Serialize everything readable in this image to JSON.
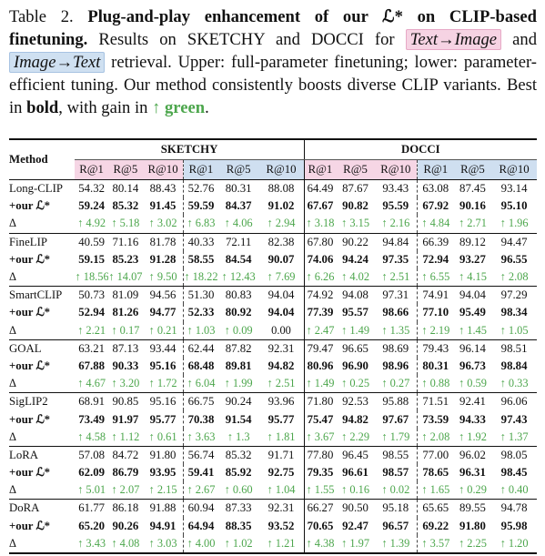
{
  "caption": {
    "label": "Table 2. ",
    "bold_title": "Plug-and-play enhancement of our ℒ* on CLIP-based finetuning.",
    "t1": " Results on SKETCHY and DOCCI for ",
    "pill_t2i": "Text→Image",
    "t2": " and ",
    "pill_i2t": "Image→Text",
    "t3": " retrieval. Upper: full-parameter finetuning; lower: parameter-efficient tuning. Our method consistently boosts diverse CLIP variants. Best in ",
    "bold_word": "bold",
    "t4": ", with gain in ",
    "gain_word": "↑ green",
    "t5": "."
  },
  "colors": {
    "t2i": "#f6d6e5",
    "i2t": "#cfdff0",
    "gain": "#4ca64c"
  },
  "table": {
    "method_header": "Method",
    "groups": [
      "SKETCHY",
      "DOCCI"
    ],
    "metrics": [
      "R@1",
      "R@5",
      "R@10",
      "R@1",
      "R@5",
      "R@10",
      "R@1",
      "R@5",
      "R@10",
      "R@1",
      "R@5",
      "R@10"
    ],
    "blocks": [
      {
        "rows": [
          {
            "type": "base",
            "label": "Long-CLIP",
            "vals": [
              "54.32",
              "80.14",
              "88.43",
              "52.76",
              "80.31",
              "88.08",
              "64.49",
              "87.67",
              "93.43",
              "63.08",
              "87.45",
              "93.14"
            ]
          },
          {
            "type": "ours",
            "label": "+our ℒ*",
            "vals": [
              "59.24",
              "85.32",
              "91.45",
              "59.59",
              "84.37",
              "91.02",
              "67.67",
              "90.82",
              "95.59",
              "67.92",
              "90.16",
              "95.10"
            ]
          },
          {
            "type": "delta",
            "label": "Δ",
            "vals": [
              "↑ 4.92",
              "↑ 5.18",
              "↑ 3.02",
              "↑ 6.83",
              "↑ 4.06",
              "↑ 2.94",
              "↑ 3.18",
              "↑ 3.15",
              "↑ 2.16",
              "↑ 4.84",
              "↑ 2.71",
              "↑ 1.96"
            ]
          }
        ]
      },
      {
        "rows": [
          {
            "type": "base",
            "label": "FineLIP",
            "vals": [
              "40.59",
              "71.16",
              "81.78",
              "40.33",
              "72.11",
              "82.38",
              "67.80",
              "90.22",
              "94.84",
              "66.39",
              "89.12",
              "94.47"
            ]
          },
          {
            "type": "ours",
            "label": "+our ℒ*",
            "vals": [
              "59.15",
              "85.23",
              "91.28",
              "58.55",
              "84.54",
              "90.07",
              "74.06",
              "94.24",
              "97.35",
              "72.94",
              "93.27",
              "96.55"
            ]
          },
          {
            "type": "delta",
            "label": "Δ",
            "vals": [
              "↑ 18.56",
              "↑ 14.07",
              "↑ 9.50",
              "↑ 18.22",
              "↑ 12.43",
              "↑ 7.69",
              "↑ 6.26",
              "↑ 4.02",
              "↑ 2.51",
              "↑ 6.55",
              "↑ 4.15",
              "↑ 2.08"
            ]
          }
        ]
      },
      {
        "rows": [
          {
            "type": "base",
            "label": "SmartCLIP",
            "vals": [
              "50.73",
              "81.09",
              "94.56",
              "51.30",
              "80.83",
              "94.04",
              "74.92",
              "94.08",
              "97.31",
              "74.91",
              "94.04",
              "97.29"
            ]
          },
          {
            "type": "ours",
            "label": "+our ℒ*",
            "vals": [
              "52.94",
              "81.26",
              "94.77",
              "52.33",
              "80.92",
              "94.04",
              "77.39",
              "95.57",
              "98.66",
              "77.10",
              "95.49",
              "98.34"
            ]
          },
          {
            "type": "delta",
            "label": "Δ",
            "vals": [
              "↑ 2.21",
              "↑ 0.17",
              "↑ 0.21",
              "↑ 1.03",
              "↑ 0.09",
              "0.00",
              "↑ 2.47",
              "↑ 1.49",
              "↑ 1.35",
              "↑ 2.19",
              "↑ 1.45",
              "↑ 1.05"
            ]
          }
        ]
      },
      {
        "rows": [
          {
            "type": "base",
            "label": "GOAL",
            "vals": [
              "63.21",
              "87.13",
              "93.44",
              "62.44",
              "87.82",
              "92.31",
              "79.47",
              "96.65",
              "98.69",
              "79.43",
              "96.14",
              "98.51"
            ]
          },
          {
            "type": "ours",
            "label": "+our ℒ*",
            "vals": [
              "67.88",
              "90.33",
              "95.16",
              "68.48",
              "89.81",
              "94.82",
              "80.96",
              "96.90",
              "98.96",
              "80.31",
              "96.73",
              "98.84"
            ]
          },
          {
            "type": "delta",
            "label": "Δ",
            "vals": [
              "↑ 4.67",
              "↑ 3.20",
              "↑ 1.72",
              "↑ 6.04",
              "↑ 1.99",
              "↑ 2.51",
              "↑ 1.49",
              "↑ 0.25",
              "↑ 0.27",
              "↑ 0.88",
              "↑ 0.59",
              "↑ 0.33"
            ]
          }
        ]
      },
      {
        "rows": [
          {
            "type": "base",
            "label": "SigLIP2",
            "vals": [
              "68.91",
              "90.85",
              "95.16",
              "66.75",
              "90.24",
              "93.96",
              "71.80",
              "92.53",
              "95.88",
              "71.51",
              "92.41",
              "96.06"
            ]
          },
          {
            "type": "ours",
            "label": "+our ℒ*",
            "vals": [
              "73.49",
              "91.97",
              "95.77",
              "70.38",
              "91.54",
              "95.77",
              "75.47",
              "94.82",
              "97.67",
              "73.59",
              "94.33",
              "97.43"
            ]
          },
          {
            "type": "delta",
            "label": "Δ",
            "vals": [
              "↑ 4.58",
              "↑ 1.12",
              "↑ 0.61",
              "↑ 3.63",
              "↑ 1.3",
              "↑ 1.81",
              "↑ 3.67",
              "↑ 2.29",
              "↑ 1.79",
              "↑ 2.08",
              "↑ 1.92",
              "↑ 1.37"
            ]
          }
        ]
      },
      {
        "rows": [
          {
            "type": "base",
            "label": "LoRA",
            "vals": [
              "57.08",
              "84.72",
              "91.80",
              "56.74",
              "85.32",
              "91.71",
              "77.80",
              "96.45",
              "98.55",
              "77.00",
              "96.02",
              "98.05"
            ]
          },
          {
            "type": "ours",
            "label": "+our ℒ*",
            "vals": [
              "62.09",
              "86.79",
              "93.95",
              "59.41",
              "85.92",
              "92.75",
              "79.35",
              "96.61",
              "98.57",
              "78.65",
              "96.31",
              "98.45"
            ]
          },
          {
            "type": "delta",
            "label": "Δ",
            "vals": [
              "↑ 5.01",
              "↑ 2.07",
              "↑ 2.15",
              "↑ 2.67",
              "↑ 0.60",
              "↑ 1.04",
              "↑ 1.55",
              "↑ 0.16",
              "↑ 0.02",
              "↑ 1.65",
              "↑ 0.29",
              "↑ 0.40"
            ]
          }
        ]
      },
      {
        "rows": [
          {
            "type": "base",
            "label": "DoRA",
            "vals": [
              "61.77",
              "86.18",
              "91.88",
              "60.94",
              "87.33",
              "92.31",
              "66.27",
              "90.50",
              "95.18",
              "65.65",
              "89.55",
              "94.78"
            ]
          },
          {
            "type": "ours",
            "label": "+our ℒ*",
            "vals": [
              "65.20",
              "90.26",
              "94.91",
              "64.94",
              "88.35",
              "93.52",
              "70.65",
              "92.47",
              "96.57",
              "69.22",
              "91.80",
              "95.98"
            ]
          },
          {
            "type": "delta",
            "label": "Δ",
            "vals": [
              "↑ 3.43",
              "↑ 4.08",
              "↑ 3.03",
              "↑ 4.00",
              "↑ 1.02",
              "↑ 1.21",
              "↑ 4.38",
              "↑ 1.97",
              "↑ 1.39",
              "↑ 3.57",
              "↑ 2.25",
              "↑ 1.20"
            ]
          }
        ]
      }
    ]
  }
}
